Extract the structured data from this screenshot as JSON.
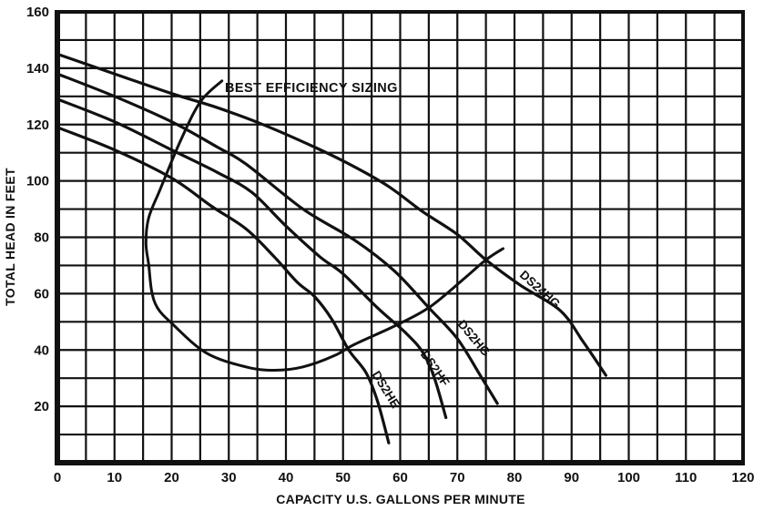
{
  "chart_data": {
    "type": "line",
    "title": "",
    "xlabel": "CAPACITY U.S. GALLONS PER MINUTE",
    "ylabel": "TOTAL HEAD IN FEET",
    "xlim": [
      0,
      120
    ],
    "ylim": [
      0,
      160
    ],
    "x_tick_labels": [
      "0",
      "10",
      "20",
      "30",
      "40",
      "50",
      "60",
      "70",
      "80",
      "90",
      "100",
      "110",
      "120"
    ],
    "y_tick_labels": [
      "20",
      "40",
      "60",
      "80",
      "100",
      "120",
      "140",
      "160"
    ],
    "x_minor_step": 5,
    "y_minor_step": 10,
    "grid": "full black square grid, minor x every 5 gpm, minor y every 10 ft",
    "legend_position": "labels rotated along curves",
    "annotation": "BEST EFFICIENCY SIZING",
    "series": [
      {
        "name": "DS24HG",
        "role": "pump_curve",
        "points": [
          [
            0,
            145
          ],
          [
            10,
            138
          ],
          [
            20,
            131
          ],
          [
            28,
            126
          ],
          [
            36,
            120
          ],
          [
            45,
            112
          ],
          [
            52,
            105
          ],
          [
            58,
            98
          ],
          [
            64,
            89
          ],
          [
            70,
            81
          ],
          [
            75,
            72
          ],
          [
            81,
            63
          ],
          [
            88,
            54
          ],
          [
            92,
            43
          ],
          [
            96,
            31
          ]
        ]
      },
      {
        "name": "DS2HG",
        "role": "pump_curve",
        "points": [
          [
            0,
            138
          ],
          [
            10,
            130
          ],
          [
            20,
            121
          ],
          [
            28,
            112
          ],
          [
            33,
            106
          ],
          [
            43,
            90
          ],
          [
            52,
            79
          ],
          [
            59,
            68
          ],
          [
            65,
            55
          ],
          [
            70,
            44
          ],
          [
            74,
            31
          ],
          [
            77,
            21
          ]
        ]
      },
      {
        "name": "DS2HF",
        "role": "pump_curve",
        "points": [
          [
            0,
            129
          ],
          [
            10,
            121
          ],
          [
            20,
            111
          ],
          [
            28,
            103
          ],
          [
            34,
            96
          ],
          [
            40,
            84
          ],
          [
            46,
            73
          ],
          [
            50,
            67
          ],
          [
            56,
            55
          ],
          [
            61,
            46
          ],
          [
            64,
            39
          ],
          [
            66,
            30
          ],
          [
            68,
            16
          ]
        ]
      },
      {
        "name": "DS2HE",
        "role": "pump_curve",
        "points": [
          [
            0,
            119
          ],
          [
            10,
            111
          ],
          [
            20,
            101
          ],
          [
            27,
            91
          ],
          [
            33,
            83
          ],
          [
            38,
            73
          ],
          [
            42,
            64
          ],
          [
            45,
            59
          ],
          [
            48,
            51
          ],
          [
            51,
            40
          ],
          [
            54,
            32
          ],
          [
            56,
            22
          ],
          [
            58,
            7
          ]
        ]
      },
      {
        "name": "BEST EFFICIENCY SIZING",
        "role": "envelope",
        "points": [
          [
            28.8,
            135.5
          ],
          [
            25,
            128
          ],
          [
            21.5,
            114
          ],
          [
            18,
            97
          ],
          [
            16,
            87
          ],
          [
            15.5,
            78
          ],
          [
            16,
            70
          ],
          [
            16.5,
            61
          ],
          [
            17.5,
            55
          ],
          [
            20,
            49.5
          ],
          [
            26,
            39
          ],
          [
            33,
            34
          ],
          [
            38,
            32.8
          ],
          [
            43,
            34
          ],
          [
            48.5,
            38
          ],
          [
            52,
            42
          ],
          [
            59,
            48.5
          ],
          [
            65,
            55
          ],
          [
            71,
            65
          ],
          [
            75,
            72
          ],
          [
            78,
            76
          ]
        ]
      }
    ]
  },
  "colors": {
    "ink": "#111111",
    "paper": "#ffffff"
  }
}
